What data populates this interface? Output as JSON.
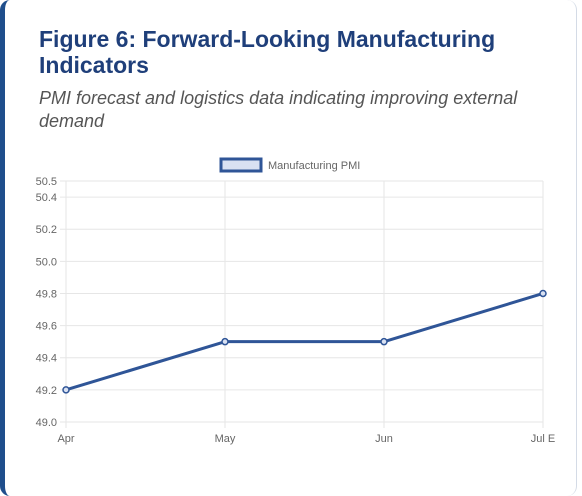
{
  "figure": {
    "title": "Figure 6: Forward-Looking Manufacturing Indicators",
    "subtitle": "PMI forecast and logistics data indicating improving external demand"
  },
  "colors": {
    "accent": "#1f4e8c",
    "title": "#1f3f7a",
    "series_line": "#2f5597",
    "legend_fill": "#d9e1f2",
    "grid": "#e6e6e6"
  },
  "chart_data": {
    "type": "line",
    "title": "",
    "xlabel": "",
    "ylabel": "",
    "categories": [
      "Apr",
      "May",
      "Jun",
      "Jul E"
    ],
    "series": [
      {
        "name": "Manufacturing PMI",
        "values": [
          49.2,
          49.5,
          49.5,
          49.8
        ]
      }
    ],
    "ylim": [
      49.0,
      50.5
    ],
    "yticks": [
      "49.0",
      "49.2",
      "49.4",
      "49.6",
      "49.8",
      "50.0",
      "50.2",
      "50.4",
      "50.5"
    ],
    "grid": true,
    "legend": "top-center"
  }
}
